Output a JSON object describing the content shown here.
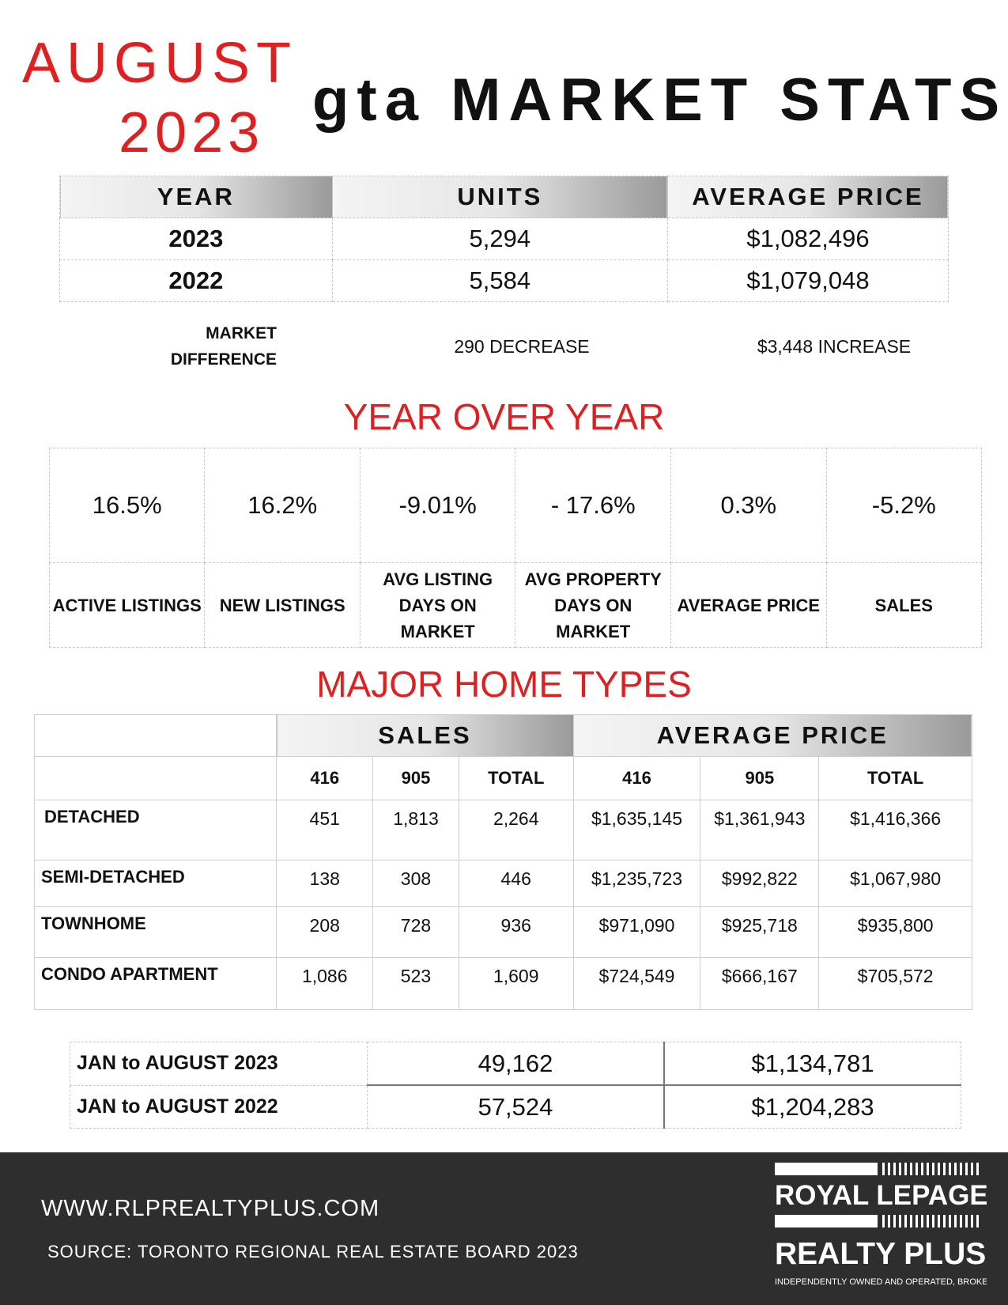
{
  "header": {
    "month": "AUGUST",
    "year": "2023",
    "title": "gta MARKET STATS"
  },
  "summary": {
    "headers": [
      "YEAR",
      "UNITS",
      "AVERAGE PRICE"
    ],
    "rows": [
      {
        "year": "2023",
        "units": "5,294",
        "price": "$1,082,496"
      },
      {
        "year": "2022",
        "units": "5,584",
        "price": "$1,079,048"
      }
    ],
    "market_difference_label_1": "MARKET",
    "market_difference_label_2": "DIFFERENCE",
    "units_difference": "290 DECREASE",
    "price_difference": "$3,448 INCREASE"
  },
  "yoy": {
    "title": "YEAR OVER YEAR",
    "values": [
      "16.5%",
      "16.2%",
      "-9.01%",
      "- 17.6%",
      "0.3%",
      "-5.2%"
    ],
    "labels": [
      [
        "ACTIVE LISTINGS"
      ],
      [
        "NEW LISTINGS"
      ],
      [
        "AVG LISTING",
        "DAYS ON",
        "MARKET"
      ],
      [
        "AVG PROPERTY",
        "DAYS ON",
        "MARKET"
      ],
      [
        "AVERAGE PRICE"
      ],
      [
        "SALES"
      ]
    ]
  },
  "home_types": {
    "title": "MAJOR HOME TYPES",
    "group_sales": "SALES",
    "group_price": "AVERAGE PRICE",
    "sub_headers": [
      "416",
      "905",
      "TOTAL",
      "416",
      "905",
      "TOTAL"
    ],
    "rows": [
      {
        "type": "DETACHED",
        "values": [
          "451",
          "1,813",
          "2,264",
          "$1,635,145",
          "$1,361,943",
          "$1,416,366"
        ]
      },
      {
        "type": "SEMI-DETACHED",
        "values": [
          "138",
          "308",
          "446",
          "$1,235,723",
          "$992,822",
          "$1,067,980"
        ]
      },
      {
        "type": "TOWNHOME",
        "values": [
          "208",
          "728",
          "936",
          "$971,090",
          "$925,718",
          "$935,800"
        ]
      },
      {
        "type": "CONDO APARTMENT",
        "values": [
          "1,086",
          "523",
          "1,609",
          "$724,549",
          "$666,167",
          "$705,572"
        ]
      }
    ]
  },
  "ytd": [
    {
      "label": "JAN to AUGUST 2023",
      "units": "49,162",
      "price": "$1,134,781"
    },
    {
      "label": "JAN to AUGUST 2022",
      "units": "57,524",
      "price": "$1,204,283"
    }
  ],
  "footer": {
    "website": "WWW.RLPREALTYPLUS.COM",
    "source": "SOURCE: TORONTO REGIONAL REAL ESTATE BOARD 2023",
    "logo_line1": "ROYAL LEPAGE",
    "logo_line2": "REALTY PLUS",
    "logo_tagline": "INDEPENDENTLY OWNED AND OPERATED, BROKERAGE"
  }
}
